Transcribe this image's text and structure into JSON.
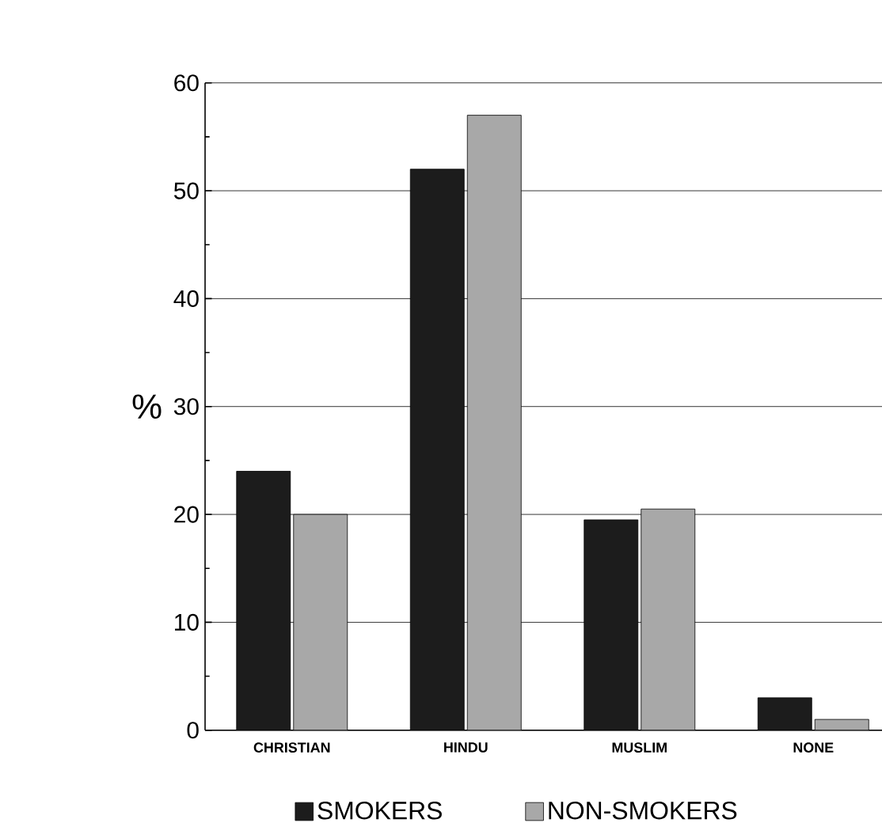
{
  "chart_data": {
    "type": "bar",
    "ylabel": "%",
    "categories": [
      "CHRISTIAN",
      "HINDU",
      "MUSLIM",
      "NONE"
    ],
    "series": [
      {
        "name": "SMOKERS",
        "color": "#1c1c1c",
        "values": [
          24,
          52,
          19.5,
          3
        ]
      },
      {
        "name": "NON-SMOKERS",
        "color": "#a8a8a8",
        "values": [
          20,
          57,
          20.5,
          1
        ]
      }
    ],
    "ylim": [
      0,
      60
    ],
    "yticks": [
      0,
      10,
      20,
      30,
      40,
      50,
      60
    ],
    "grid": "y",
    "legend": "bottom"
  }
}
